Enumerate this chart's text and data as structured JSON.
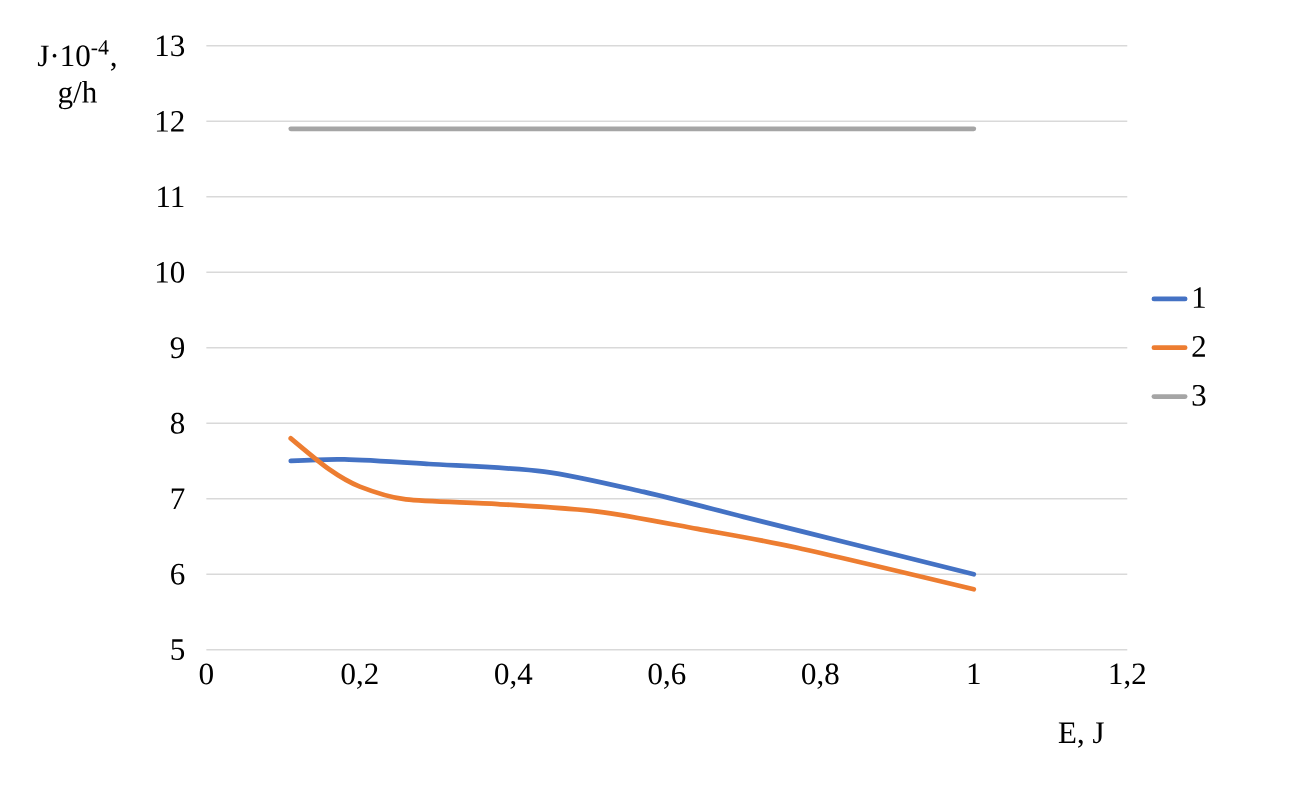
{
  "chart_data": {
    "type": "line",
    "xlabel": "E, J",
    "ylabel": "J·10$^{-4}$, g/h",
    "xlim": [
      0,
      1.2
    ],
    "xticks": [
      0,
      {
        "value": 0.2,
        "label": "0,2"
      },
      {
        "value": 0.4,
        "label": "0,4"
      },
      {
        "value": 0.6,
        "label": "0,6"
      },
      {
        "value": 0.8,
        "label": "0,8"
      },
      1,
      {
        "value": 1.2,
        "label": "1,2"
      }
    ],
    "ylim": [
      5,
      13
    ],
    "yticks": [
      5,
      6,
      7,
      8,
      9,
      10,
      11,
      12,
      13
    ],
    "grid": "y",
    "legend": "right",
    "line_style": "solid",
    "marker": "none",
    "series": [
      {
        "name": "1",
        "color": "#4472c4",
        "x": [
          0.11,
          0.18,
          0.29,
          0.44,
          0.57,
          0.7,
          0.83,
          1
        ],
        "values": [
          7.5,
          7.52,
          7.46,
          7.36,
          7.09,
          6.76,
          6.43,
          6.0
        ]
      },
      {
        "name": "2",
        "color": "#ed7d31",
        "x": [
          0.11,
          0.16,
          0.2,
          0.26,
          0.38,
          0.51,
          0.64,
          0.77,
          1
        ],
        "values": [
          7.8,
          7.39,
          7.16,
          6.99,
          6.93,
          6.83,
          6.6,
          6.35,
          5.8
        ]
      },
      {
        "name": "3",
        "color": "#a5a5a5",
        "x": [
          0.11,
          1
        ],
        "values": [
          11.9,
          11.9
        ]
      }
    ]
  }
}
